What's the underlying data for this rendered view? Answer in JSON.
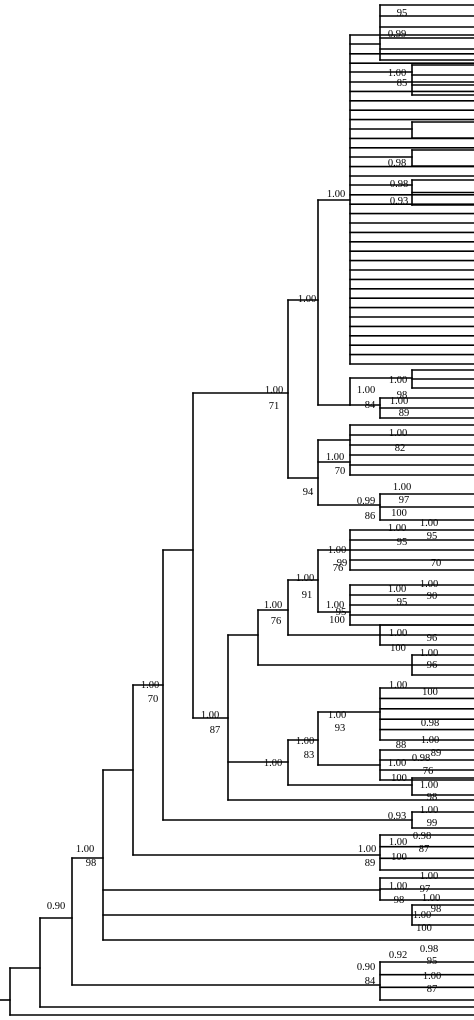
{
  "labels": [
    "95",
    "0.99",
    "1.00",
    "85",
    "0.98",
    "0.98",
    "0.93",
    "1.00",
    "1.00",
    "1.00",
    "71",
    "1.00",
    "98",
    "1.00",
    "84",
    "1.00",
    "89",
    "1.00",
    "82",
    "1.00",
    "70",
    "94",
    "1.00",
    "97",
    "0.99",
    "100",
    "86",
    "1.00",
    "95",
    "1.00",
    "95",
    "1.00",
    "99",
    "76",
    "70",
    "91",
    "1.00",
    "1.00",
    "90",
    "1.00",
    "95",
    "1.00",
    "95",
    "100",
    "1.00",
    "76",
    "1.00",
    "96",
    "100",
    "1.00",
    "96",
    "1.00",
    "100",
    "1.00",
    "93",
    "0.98",
    "1.00",
    "88",
    "89",
    "1.00",
    "83",
    "1.00",
    "87",
    "1.00",
    "0.98",
    "1.00",
    "76",
    "100",
    "1.00",
    "98",
    "1.00",
    "70",
    "0.93",
    "1.00",
    "99",
    "0.98",
    "1.00",
    "87",
    "100",
    "89",
    "1.00",
    "1.00",
    "98",
    "1.00",
    "97",
    "1.00",
    "1.00",
    "98",
    "98",
    "1.00",
    "100",
    "0.90",
    "0.98",
    "0.92",
    "95",
    "0.90",
    "1.00",
    "84",
    "87"
  ]
}
